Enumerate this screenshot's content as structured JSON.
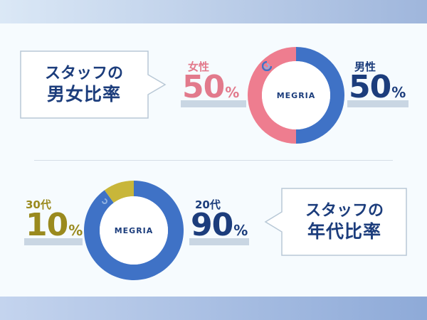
{
  "colors": {
    "female": "#ee7d8f",
    "male": "#3f72c6",
    "age30": "#c8b63a",
    "age20": "#3f72c6",
    "label_female": "#e27a8c",
    "label_male": "#1c3d7c",
    "label_30": "#9a8a1e",
    "label_20": "#1c3d7c",
    "navy": "#1c3d7c",
    "bar_fill": "#c9d6e3"
  },
  "gender": {
    "callout_line1": "スタッフの",
    "callout_line2": "男女比率",
    "logo_text": "MEGRIA",
    "female": {
      "label": "女性",
      "value": "50",
      "unit": "%"
    },
    "male": {
      "label": "男性",
      "value": "50",
      "unit": "%"
    }
  },
  "age": {
    "callout_line1": "スタッフの",
    "callout_line2": "年代比率",
    "logo_text": "MEGRIA",
    "age30": {
      "label": "30代",
      "value": "10",
      "unit": "%"
    },
    "age20": {
      "label": "20代",
      "value": "90",
      "unit": "%"
    }
  },
  "chart_data": [
    {
      "type": "pie",
      "categories": [
        "女性",
        "男性"
      ],
      "values": [
        50,
        50
      ]
    },
    {
      "type": "pie",
      "categories": [
        "30代",
        "20代"
      ],
      "values": [
        10,
        90
      ]
    }
  ]
}
